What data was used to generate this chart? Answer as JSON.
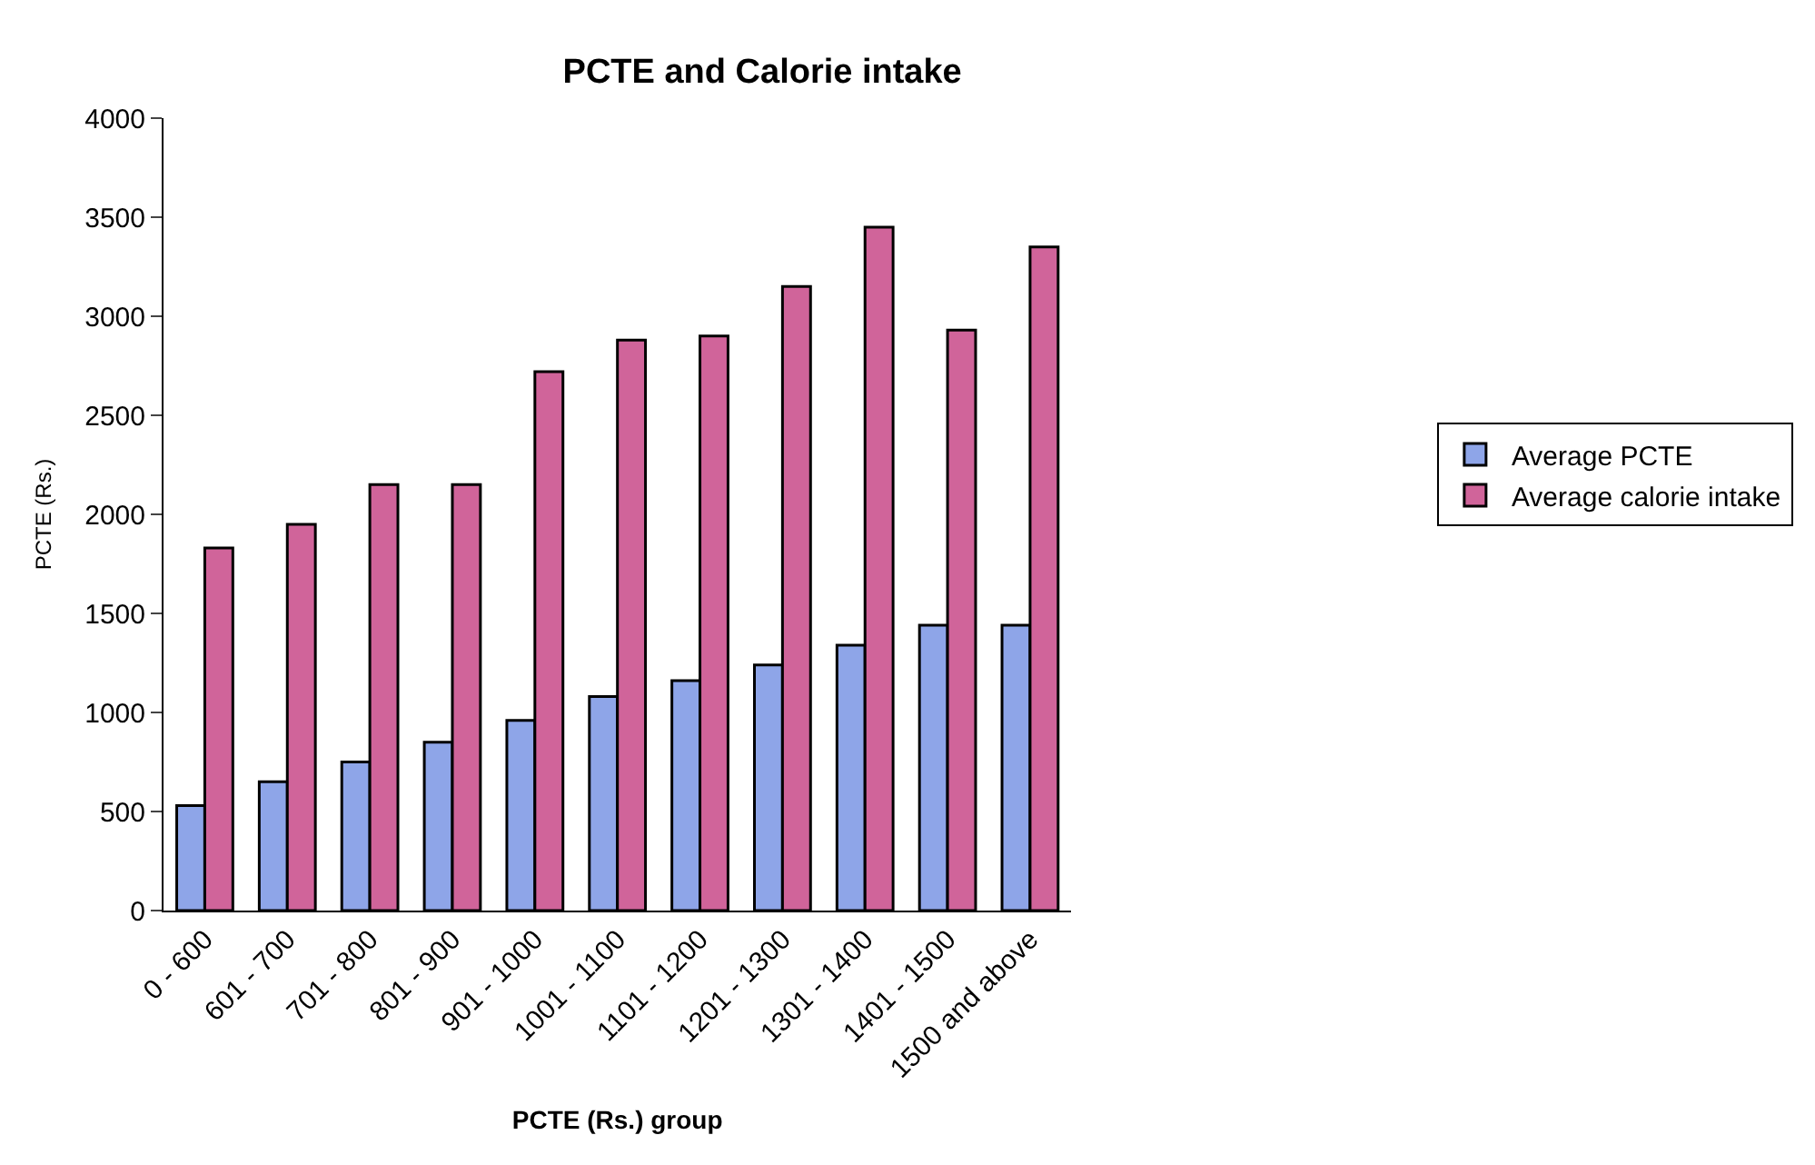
{
  "chart_data": {
    "type": "bar",
    "title": "PCTE and Calorie intake",
    "xlabel": "PCTE (Rs.) group",
    "ylabel": "PCTE (Rs.)",
    "categories": [
      "0 - 600",
      "601 - 700",
      "701 - 800",
      "801 - 900",
      "901 - 1000",
      "1001 - 1100",
      "1101 - 1200",
      "1201 - 1300",
      "1301 - 1400",
      "1401 - 1500",
      "1500 and above"
    ],
    "series": [
      {
        "name": "Average PCTE",
        "color": "#8ea5e8",
        "values": [
          530,
          650,
          750,
          850,
          960,
          1080,
          1160,
          1240,
          1340,
          1440,
          1440
        ]
      },
      {
        "name": "Average calorie intake",
        "color": "#d0649a",
        "values": [
          1830,
          1950,
          2150,
          2150,
          2720,
          2880,
          2900,
          3150,
          3450,
          2930,
          3350
        ]
      }
    ],
    "ylim": [
      0,
      4000
    ],
    "yticks": [
      0,
      500,
      1000,
      1500,
      2000,
      2500,
      3000,
      3500,
      4000
    ],
    "grid": false,
    "legend": "right"
  }
}
